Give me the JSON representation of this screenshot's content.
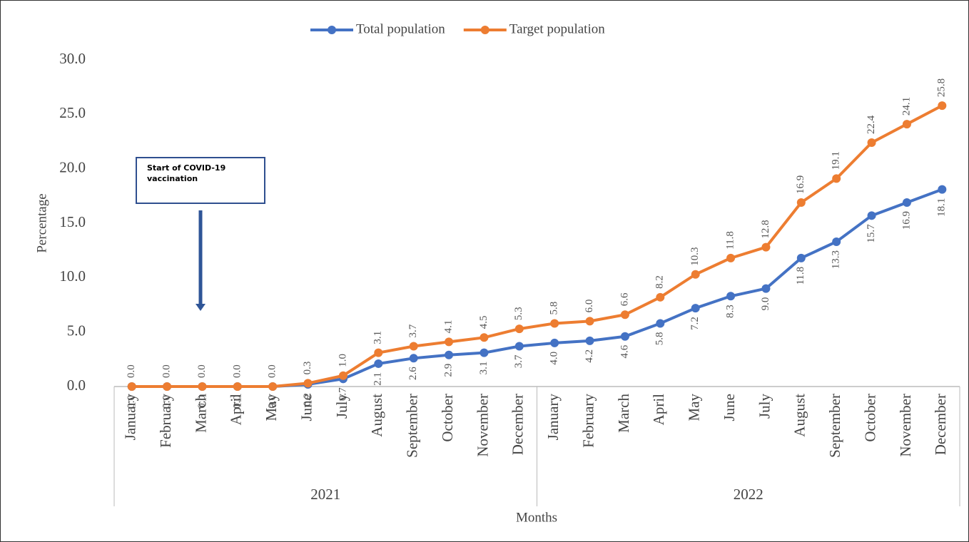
{
  "chart_data": {
    "type": "line",
    "x_label": "Months",
    "y_label": "Percentage",
    "annotation": "Start of COVID-19 vaccination",
    "categories": [
      "January",
      "February",
      "March",
      "April",
      "May",
      "June",
      "July",
      "August",
      "September",
      "October",
      "November",
      "December",
      "January",
      "February",
      "March",
      "April",
      "May",
      "June",
      "July",
      "August",
      "September",
      "October",
      "November",
      "December"
    ],
    "groups": [
      {
        "label": "2021",
        "span": 12
      },
      {
        "label": "2022",
        "span": 12
      }
    ],
    "series": [
      {
        "name": "Total population",
        "color": "#4472c4",
        "values": [
          0,
          0,
          0,
          0,
          0,
          0.2,
          0.7,
          2.1,
          2.6,
          2.9,
          3.1,
          3.7,
          4.0,
          4.2,
          4.6,
          5.8,
          7.2,
          8.3,
          9.0,
          11.8,
          13.3,
          15.7,
          16.9,
          18.1
        ],
        "value_labels": [
          "0.0",
          "0.0",
          "0.0",
          "0.0",
          "0.0",
          "0.2",
          "0.7",
          "2.1",
          "2.6",
          "2.9",
          "3.1",
          "3.7",
          "4.0",
          "4.2",
          "4.6",
          "5.8",
          "7.2",
          "8.3",
          "9.0",
          "11.8",
          "13.3",
          "15.7",
          "16.9",
          "18.1"
        ]
      },
      {
        "name": "Target population",
        "color": "#ed7d31",
        "values": [
          0,
          0,
          0,
          0,
          0,
          0.3,
          1.0,
          3.1,
          3.7,
          4.1,
          4.5,
          5.3,
          5.8,
          6.0,
          6.6,
          8.2,
          10.3,
          11.8,
          12.8,
          16.9,
          19.1,
          22.4,
          24.1,
          25.8
        ],
        "value_labels": [
          "0.0",
          "0.0",
          "0.0",
          "0.0",
          "0.0",
          "0.3",
          "1.0",
          "3.1",
          "3.7",
          "4.1",
          "4.5",
          "5.3",
          "5.8",
          "6.0",
          "6.6",
          "8.2",
          "10.3",
          "11.8",
          "12.8",
          "16.9",
          "19.1",
          "22.4",
          "24.1",
          "25.8"
        ]
      }
    ],
    "ylim": [
      0,
      30
    ],
    "yticks": [
      {
        "value": 0,
        "label": "0.0"
      },
      {
        "value": 5,
        "label": "5.0"
      },
      {
        "value": 10,
        "label": "10.0"
      },
      {
        "value": 15,
        "label": "15.0"
      },
      {
        "value": 20,
        "label": "20.0"
      },
      {
        "value": 25,
        "label": "25.0"
      },
      {
        "value": 30,
        "label": "30.0"
      }
    ]
  }
}
